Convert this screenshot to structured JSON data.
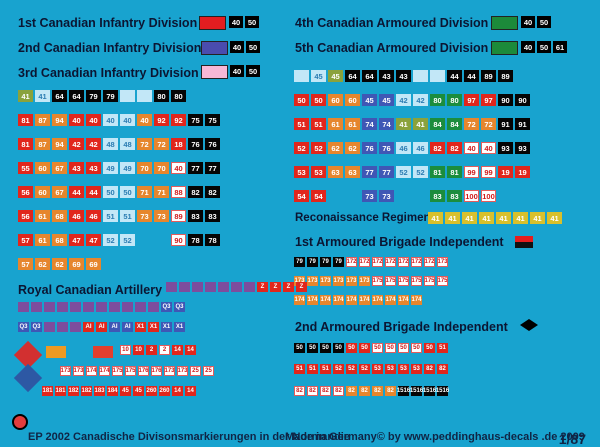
{
  "titles": {
    "div1": "1st Canadian Infantry Division",
    "div2": "2nd Canadian Infantry Division",
    "div3": "3rd Canadian Infantry Division",
    "div4": "4th Canadian Armoured Division",
    "div5": "5th Canadian Armoured Division",
    "artillery": "Royal Canadian Artillery",
    "recon": "Reconaissance Regiment",
    "brigade1": "1st Armoured Brigade Independent",
    "brigade2": "2nd Armoured Brigade Independent"
  },
  "colors": {
    "div1": "#e31d20",
    "div2": "#4a4cae",
    "div3": "#f7b8d6",
    "div4": "#1c8a3a",
    "div5": "#1c8a3a"
  },
  "numbers": {
    "n40": "40",
    "n50": "50",
    "n61": "61"
  },
  "footer": {
    "left": "EP 2002 Canadische Divisonsmarkierungen in der Normandie",
    "center": "Made in Germany© by www.peddinghaus-decals .de 2009",
    "right": "1/87"
  },
  "left_rows": [
    [
      "41",
      "41",
      "64",
      "64",
      "79",
      "79",
      "",
      "",
      "80",
      "80"
    ],
    [
      "81",
      "87",
      "94",
      "40",
      "40",
      "40",
      "40",
      "40",
      "92",
      "92",
      "75",
      "75"
    ],
    [
      "81",
      "87",
      "94",
      "42",
      "42",
      "48",
      "48",
      "72",
      "72",
      "18",
      "76",
      "76"
    ],
    [
      "55",
      "60",
      "67",
      "43",
      "43",
      "49",
      "49",
      "70",
      "70",
      "40",
      "77",
      "77"
    ],
    [
      "56",
      "60",
      "67",
      "44",
      "44",
      "50",
      "50",
      "71",
      "71",
      "88",
      "82",
      "82"
    ],
    [
      "56",
      "61",
      "68",
      "46",
      "46",
      "51",
      "51",
      "73",
      "73",
      "89",
      "83",
      "83"
    ],
    [
      "57",
      "61",
      "68",
      "47",
      "47",
      "52",
      "52",
      "",
      "",
      "90",
      "78",
      "78"
    ],
    [
      "57",
      "62",
      "62",
      "69",
      "69"
    ]
  ],
  "right_rows": [
    [
      "",
      "45",
      "45",
      "64",
      "64",
      "43",
      "43",
      "",
      "",
      "44",
      "44",
      "89",
      "89"
    ],
    [
      "50",
      "50",
      "60",
      "60",
      "45",
      "45",
      "42",
      "42",
      "80",
      "80",
      "97",
      "97",
      "90",
      "90"
    ],
    [
      "51",
      "51",
      "61",
      "61",
      "74",
      "74",
      "41",
      "41",
      "84",
      "84",
      "72",
      "72",
      "91",
      "91"
    ],
    [
      "52",
      "52",
      "62",
      "62",
      "76",
      "76",
      "46",
      "46",
      "82",
      "82",
      "40",
      "40",
      "93",
      "93"
    ],
    [
      "53",
      "53",
      "63",
      "63",
      "77",
      "77",
      "52",
      "52",
      "81",
      "81",
      "99",
      "99",
      "19",
      "19"
    ],
    [
      "54",
      "54",
      "",
      "",
      "73",
      "73",
      "",
      "",
      "83",
      "83",
      "100",
      "100"
    ]
  ],
  "recon": [
    "41",
    "41",
    "41",
    "41",
    "41",
    "41",
    "41",
    "41"
  ],
  "brigade1": [
    "79",
    "79",
    "79",
    "79",
    "172",
    "172",
    "172",
    "172",
    "172",
    "172",
    "172",
    "173"
  ],
  "brigade1b": [
    "173",
    "173",
    "173",
    "173",
    "173",
    "173",
    "175",
    "175",
    "175",
    "175",
    "175",
    "175"
  ],
  "brigade1c": [
    "174",
    "174",
    "174",
    "174",
    "174",
    "174",
    "174",
    "174",
    "174",
    "174"
  ],
  "brigade2": [
    "50",
    "50",
    "50",
    "50",
    "50",
    "50",
    "50",
    "50",
    "50",
    "50",
    "50",
    "51"
  ],
  "brigade2b": [
    "51",
    "51",
    "51",
    "52",
    "52",
    "52",
    "53",
    "53",
    "53",
    "53",
    "82",
    "82"
  ],
  "brigade2c": [
    "82",
    "82",
    "82",
    "82",
    "82",
    "82",
    "82",
    "82",
    "1516",
    "1516",
    "1516",
    "1516"
  ],
  "artillery1": [
    "",
    "",
    "",
    "",
    "",
    "",
    "",
    "Z",
    "Z",
    "Z",
    "Z"
  ],
  "artillery2": [
    "",
    "",
    "",
    "",
    "",
    "",
    "",
    "",
    "",
    "",
    "",
    "Q3",
    "Q3"
  ],
  "artillery3": [
    "Q3",
    "Q3",
    "",
    "",
    "",
    "AI",
    "AI",
    "AI",
    "AI",
    "X1",
    "X1",
    "X1",
    "X1"
  ],
  "artillery4": [
    "10",
    "10",
    "2",
    "2",
    "14",
    "14"
  ],
  "artillery5": [
    "173",
    "173",
    "174",
    "174",
    "175",
    "175",
    "176",
    "176",
    "173",
    "173",
    "25",
    "25"
  ],
  "artillery6": [
    "181",
    "181",
    "182",
    "182",
    "183",
    "184",
    "45",
    "45",
    "260",
    "260",
    "14",
    "14"
  ]
}
